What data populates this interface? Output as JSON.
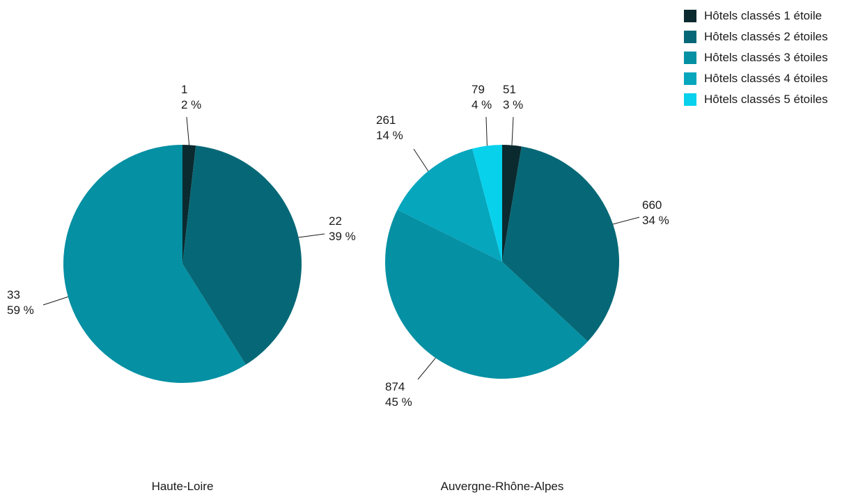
{
  "chart_data": {
    "type": "pie",
    "categories": [
      "Hôtels classés 1 étoile",
      "Hôtels classés 2 étoiles",
      "Hôtels classés 3 étoiles",
      "Hôtels classés 4 étoiles",
      "Hôtels classés 5 étoiles"
    ],
    "colors": [
      "#0b2a2f",
      "#066876",
      "#0590a3",
      "#06a6bd",
      "#08d1ec"
    ],
    "legend_position": "top-right",
    "charts": [
      {
        "name": "Haute-Loire",
        "values": [
          1,
          22,
          33,
          0,
          0
        ],
        "value_labels": [
          "1",
          "22",
          "33",
          "",
          ""
        ],
        "percent_labels": [
          "2 %",
          "39 %",
          "59 %",
          "",
          ""
        ]
      },
      {
        "name": "Auvergne-Rhône-Alpes",
        "values": [
          51,
          660,
          874,
          261,
          79
        ],
        "value_labels": [
          "51",
          "660",
          "874",
          "261",
          "79"
        ],
        "percent_labels": [
          "3 %",
          "34 %",
          "45 %",
          "14 %",
          "4 %"
        ]
      }
    ]
  }
}
